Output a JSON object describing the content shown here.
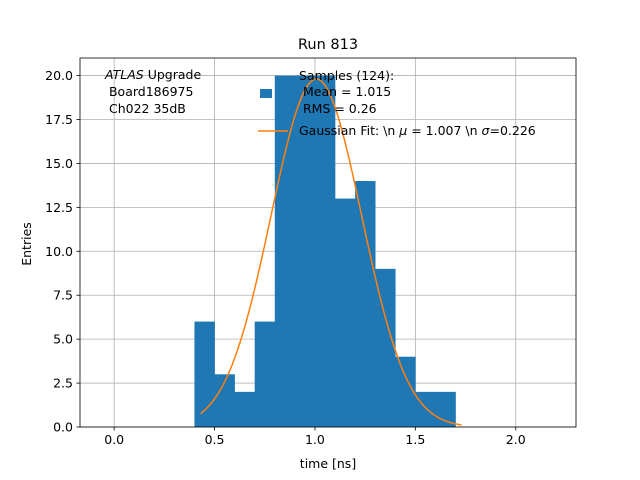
{
  "chart_data": {
    "type": "bar",
    "title": "Run 813",
    "xlabel": "time [ns]",
    "ylabel": "Entries",
    "xlim": [
      -0.17,
      2.3
    ],
    "ylim": [
      0,
      21
    ],
    "grid": true,
    "xticks": [
      0.0,
      0.5,
      1.0,
      1.5,
      2.0
    ],
    "xtick_labels": [
      "0.0",
      "0.5",
      "1.0",
      "1.5",
      "2.0"
    ],
    "yticks": [
      0.0,
      2.5,
      5.0,
      7.5,
      10.0,
      12.5,
      15.0,
      17.5,
      20.0
    ],
    "ytick_labels": [
      "0.0",
      "2.5",
      "5.0",
      "7.5",
      "10.0",
      "12.5",
      "15.0",
      "17.5",
      "20.0"
    ],
    "annotation": {
      "italic_part": "ATLAS",
      "line1_rest": " Upgrade",
      "line2": " Board186975",
      "line3": " Ch022 35dB"
    },
    "histogram": {
      "name": "Samples (124):\n Mean = 1.015\n RMS = 0.26",
      "legend_lines": [
        "Samples (124):",
        " Mean = 1.015",
        " RMS = 0.26"
      ],
      "color": "#1f77b4",
      "bin_edges": [
        0.4,
        0.5,
        0.6,
        0.7,
        0.8,
        0.9,
        1.0,
        1.1,
        1.2,
        1.3,
        1.4,
        1.5,
        1.6,
        1.7,
        1.8
      ],
      "counts": [
        6,
        3,
        2,
        6,
        20,
        20,
        20,
        13,
        14,
        9,
        4,
        2,
        2,
        0
      ]
    },
    "fit": {
      "name": "Gaussian Fit: \\n μ = 1.007 \\n σ=0.226",
      "legend_pre_mu": "Gaussian Fit: \\n ",
      "mu_symbol": "μ",
      "legend_mid": " = 1.007 \\n ",
      "sigma_symbol": "σ",
      "legend_post": "=0.226",
      "color": "#ff7f0e",
      "mu": 1.007,
      "sigma": 0.226,
      "amplitude": 19.8,
      "x_range": [
        0.43,
        1.73
      ]
    },
    "legend_position": "top-right"
  }
}
